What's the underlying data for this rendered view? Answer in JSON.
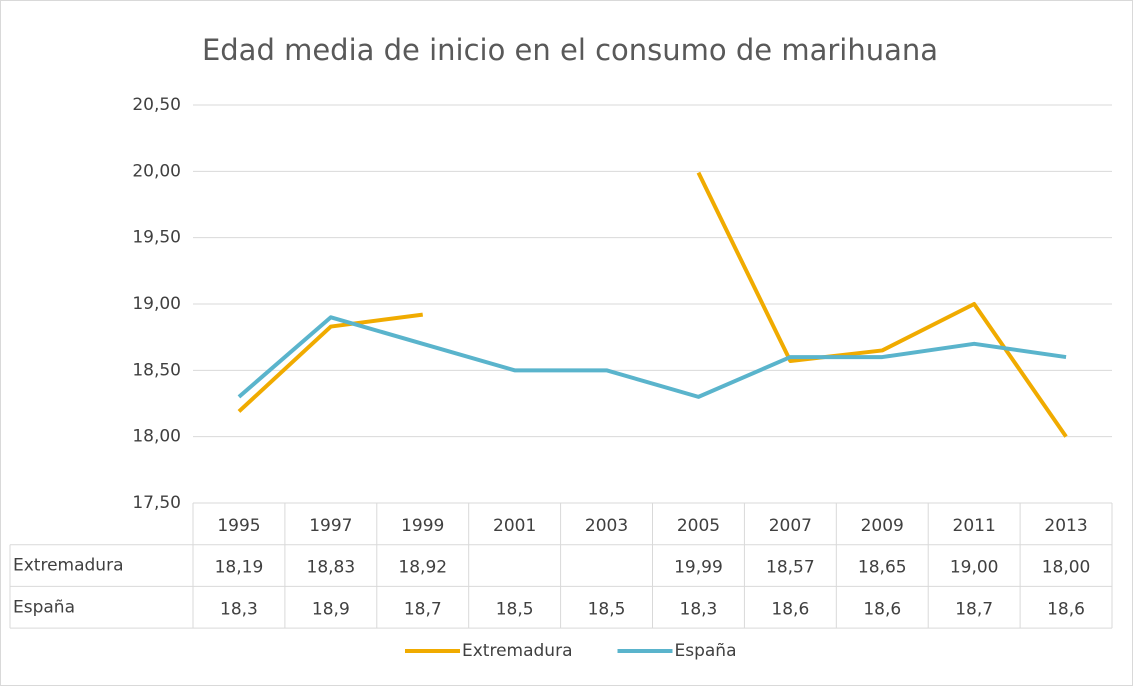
{
  "chart_data": {
    "type": "line",
    "title": "Edad media de inicio en el consumo de marihuana",
    "categories": [
      "1995",
      "1997",
      "1999",
      "2001",
      "2003",
      "2005",
      "2007",
      "2009",
      "2011",
      "2013"
    ],
    "series": [
      {
        "name": "Extremadura",
        "color": "#f0ab00",
        "values": [
          18.19,
          18.83,
          18.92,
          null,
          null,
          19.99,
          18.57,
          18.65,
          19.0,
          18.0
        ],
        "value_labels": [
          "18,19",
          "18,83",
          "18,92",
          null,
          null,
          "19,99",
          "18,57",
          "18,65",
          "19,00",
          "18,00"
        ]
      },
      {
        "name": "España",
        "color": "#5ab4cc",
        "values": [
          18.3,
          18.9,
          18.7,
          18.5,
          18.5,
          18.3,
          18.6,
          18.6,
          18.7,
          18.6
        ],
        "value_labels": [
          "18,3",
          "18,9",
          "18,7",
          "18,5",
          "18,5",
          "18,3",
          "18,6",
          "18,6",
          "18,7",
          "18,6"
        ]
      }
    ],
    "ylim": [
      17.5,
      20.5
    ],
    "yticks": [
      {
        "value": 17.5,
        "label": "17,50"
      },
      {
        "value": 18,
        "label": "18,00"
      },
      {
        "value": 18.5,
        "label": "18,50"
      },
      {
        "value": 19,
        "label": "19,00"
      },
      {
        "value": 19.5,
        "label": "19,50"
      },
      {
        "value": 20,
        "label": "20,00"
      },
      {
        "value": 20.5,
        "label": "20,50"
      }
    ],
    "grid": true,
    "legend": "bottom"
  }
}
